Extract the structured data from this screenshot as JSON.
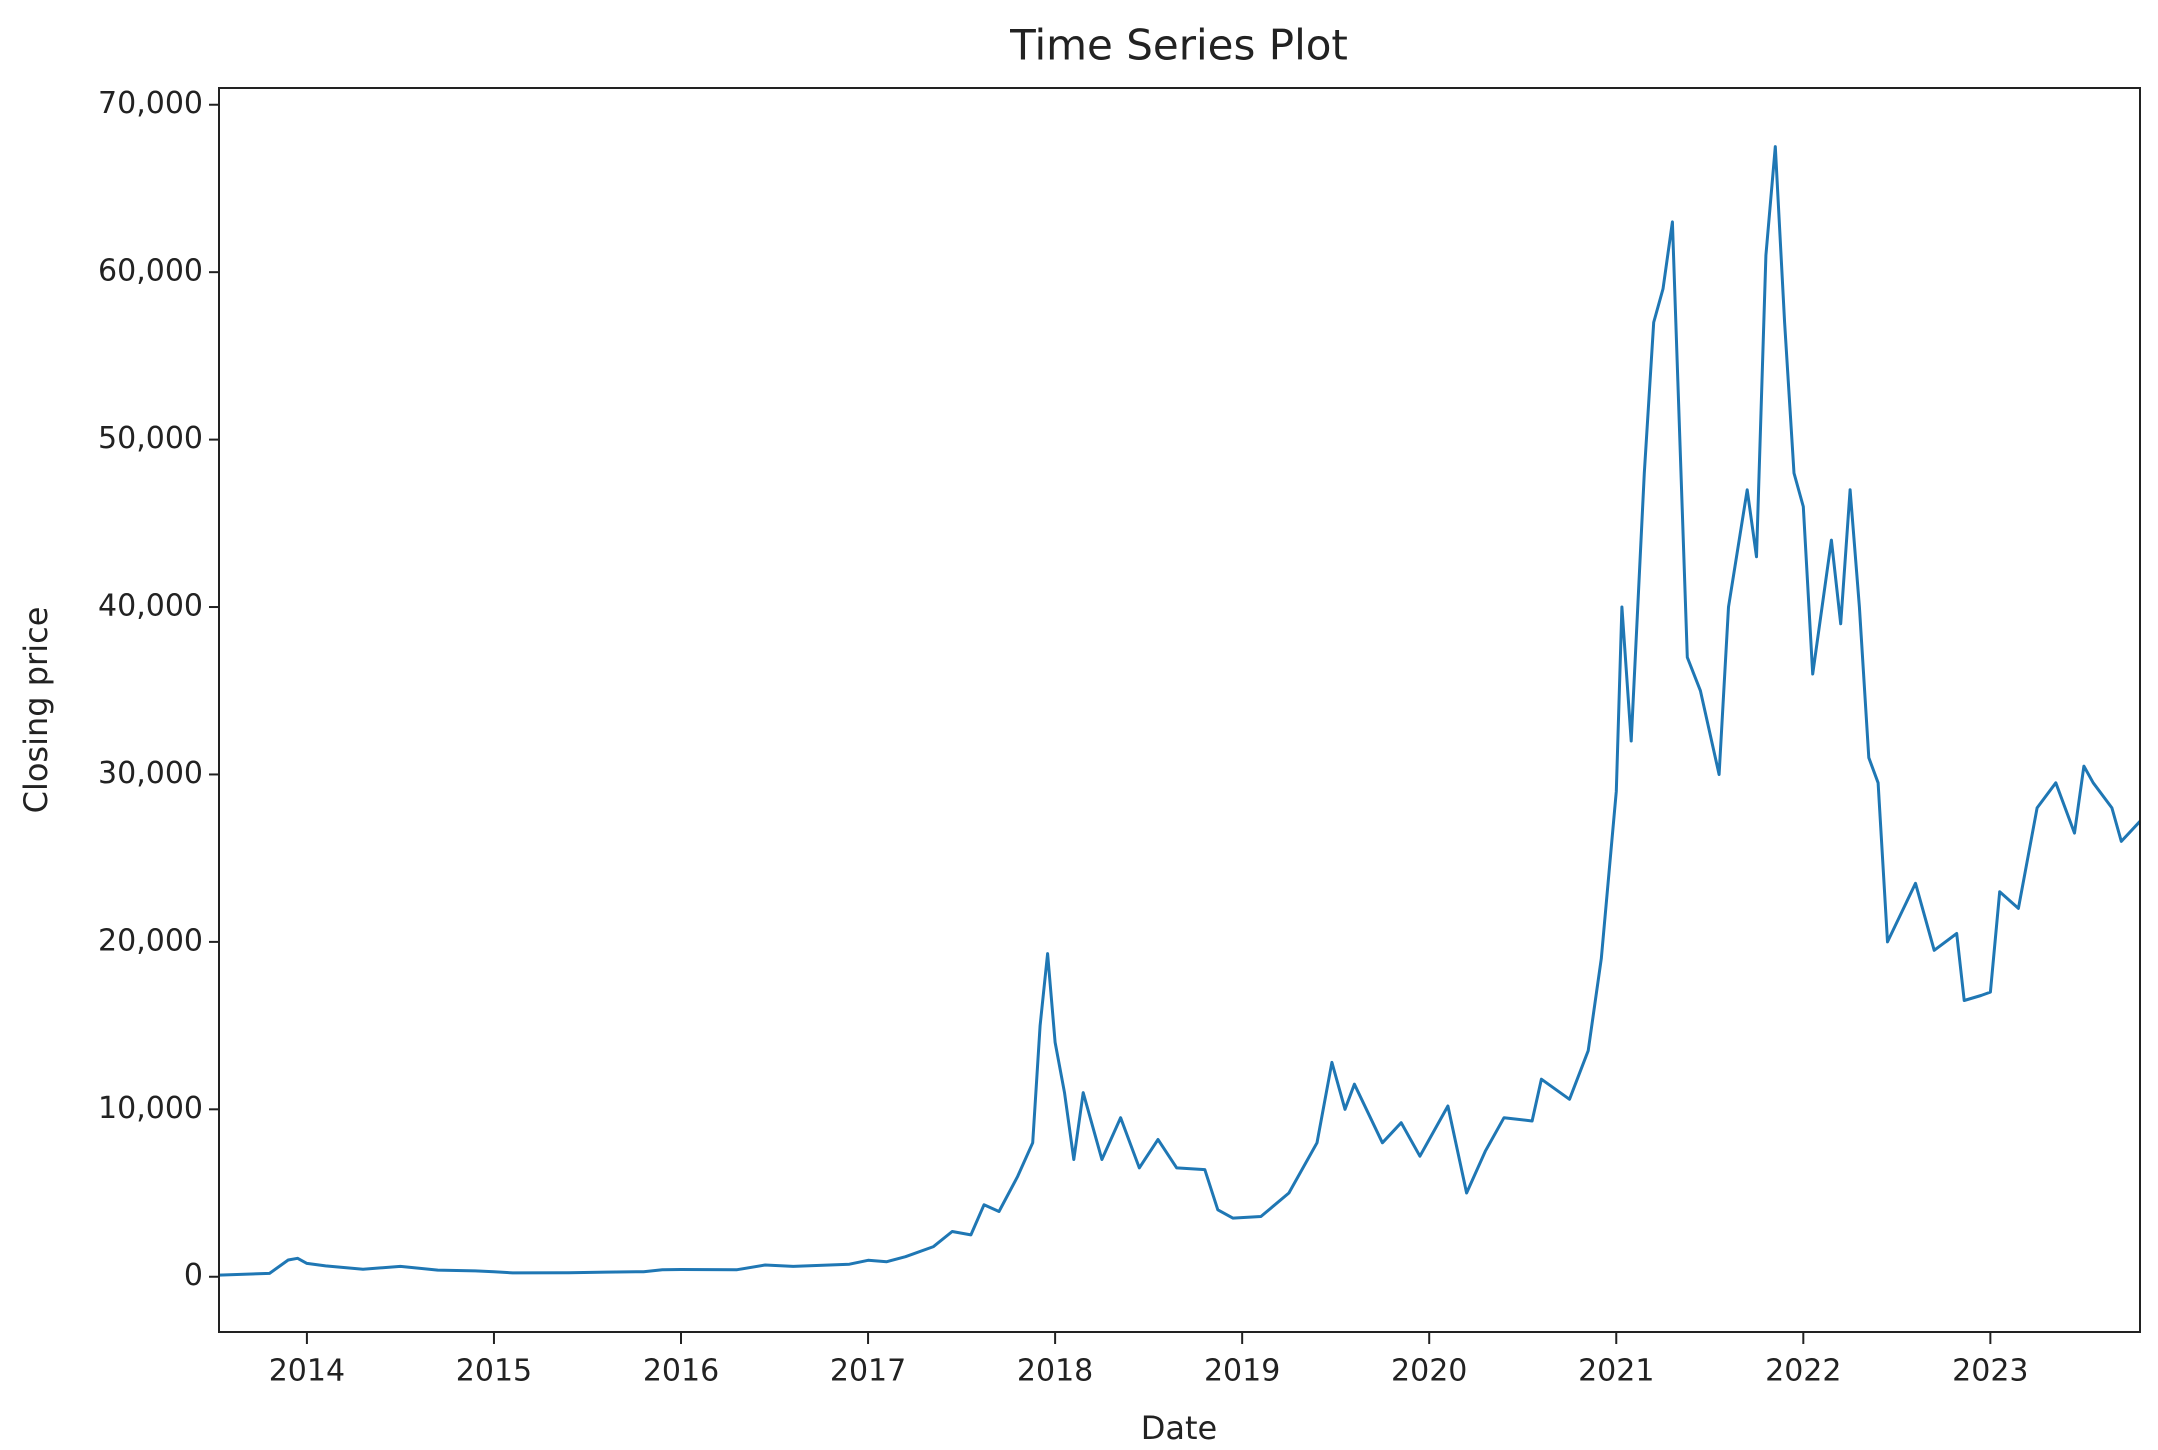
{
  "chart_data": {
    "type": "line",
    "title": "Time Series Plot",
    "x_label": "Date",
    "y_label": "Closing price",
    "xlim": [
      2013.53,
      2023.8
    ],
    "ylim": [
      -3300,
      71000
    ],
    "xticks": [
      2014,
      2015,
      2016,
      2017,
      2018,
      2019,
      2020,
      2021,
      2022,
      2023
    ],
    "yticks": [
      0,
      {
        "value": 10000,
        "label": "10,000"
      },
      {
        "value": 20000,
        "label": "20,000"
      },
      {
        "value": 30000,
        "label": "30,000"
      },
      {
        "value": 40000,
        "label": "40,000"
      },
      {
        "value": 50000,
        "label": "50,000"
      },
      {
        "value": 60000,
        "label": "60,000"
      },
      {
        "value": 70000,
        "label": "70,000"
      }
    ],
    "series": [
      {
        "color": "#1f77b4",
        "x": [
          2013.53,
          2013.8,
          2013.9,
          2013.95,
          2014.0,
          2014.1,
          2014.3,
          2014.5,
          2014.7,
          2014.9,
          2015.0,
          2015.1,
          2015.4,
          2015.6,
          2015.8,
          2015.9,
          2016.0,
          2016.3,
          2016.45,
          2016.6,
          2016.9,
          2017.0,
          2017.1,
          2017.2,
          2017.35,
          2017.45,
          2017.55,
          2017.62,
          2017.7,
          2017.8,
          2017.88,
          2017.92,
          2017.96,
          2018.0,
          2018.05,
          2018.1,
          2018.15,
          2018.25,
          2018.35,
          2018.45,
          2018.55,
          2018.65,
          2018.8,
          2018.87,
          2018.95,
          2019.1,
          2019.25,
          2019.4,
          2019.48,
          2019.55,
          2019.6,
          2019.75,
          2019.85,
          2019.95,
          2020.1,
          2020.2,
          2020.3,
          2020.4,
          2020.55,
          2020.6,
          2020.75,
          2020.85,
          2020.92,
          2021.0,
          2021.03,
          2021.08,
          2021.15,
          2021.2,
          2021.25,
          2021.3,
          2021.38,
          2021.45,
          2021.55,
          2021.6,
          2021.7,
          2021.75,
          2021.8,
          2021.85,
          2021.9,
          2021.95,
          2022.0,
          2022.05,
          2022.15,
          2022.2,
          2022.25,
          2022.3,
          2022.35,
          2022.4,
          2022.45,
          2022.6,
          2022.7,
          2022.82,
          2022.86,
          2022.95,
          2023.0,
          2023.05,
          2023.15,
          2023.25,
          2023.35,
          2023.45,
          2023.5,
          2023.55,
          2023.65,
          2023.7,
          2023.8
        ],
        "values": [
          100,
          200,
          1000,
          1100,
          800,
          650,
          450,
          620,
          400,
          350,
          300,
          230,
          240,
          280,
          300,
          420,
          430,
          420,
          700,
          620,
          750,
          980,
          900,
          1200,
          1800,
          2700,
          2500,
          4300,
          3900,
          6000,
          8000,
          15000,
          19300,
          14000,
          11000,
          7000,
          11000,
          7000,
          9500,
          6500,
          8200,
          6500,
          6400,
          4000,
          3500,
          3600,
          5000,
          8000,
          12800,
          10000,
          11500,
          8000,
          9200,
          7200,
          10200,
          5000,
          7500,
          9500,
          9300,
          11800,
          10600,
          13500,
          19000,
          29000,
          40000,
          32000,
          48000,
          57000,
          59000,
          63000,
          37000,
          35000,
          30000,
          40000,
          47000,
          43000,
          61000,
          67500,
          57000,
          48000,
          46000,
          36000,
          44000,
          39000,
          47000,
          40000,
          31000,
          29500,
          20000,
          23500,
          19500,
          20500,
          16500,
          16800,
          17000,
          23000,
          22000,
          28000,
          29500,
          26500,
          30500,
          29500,
          28000,
          26000,
          27200
        ]
      }
    ]
  }
}
